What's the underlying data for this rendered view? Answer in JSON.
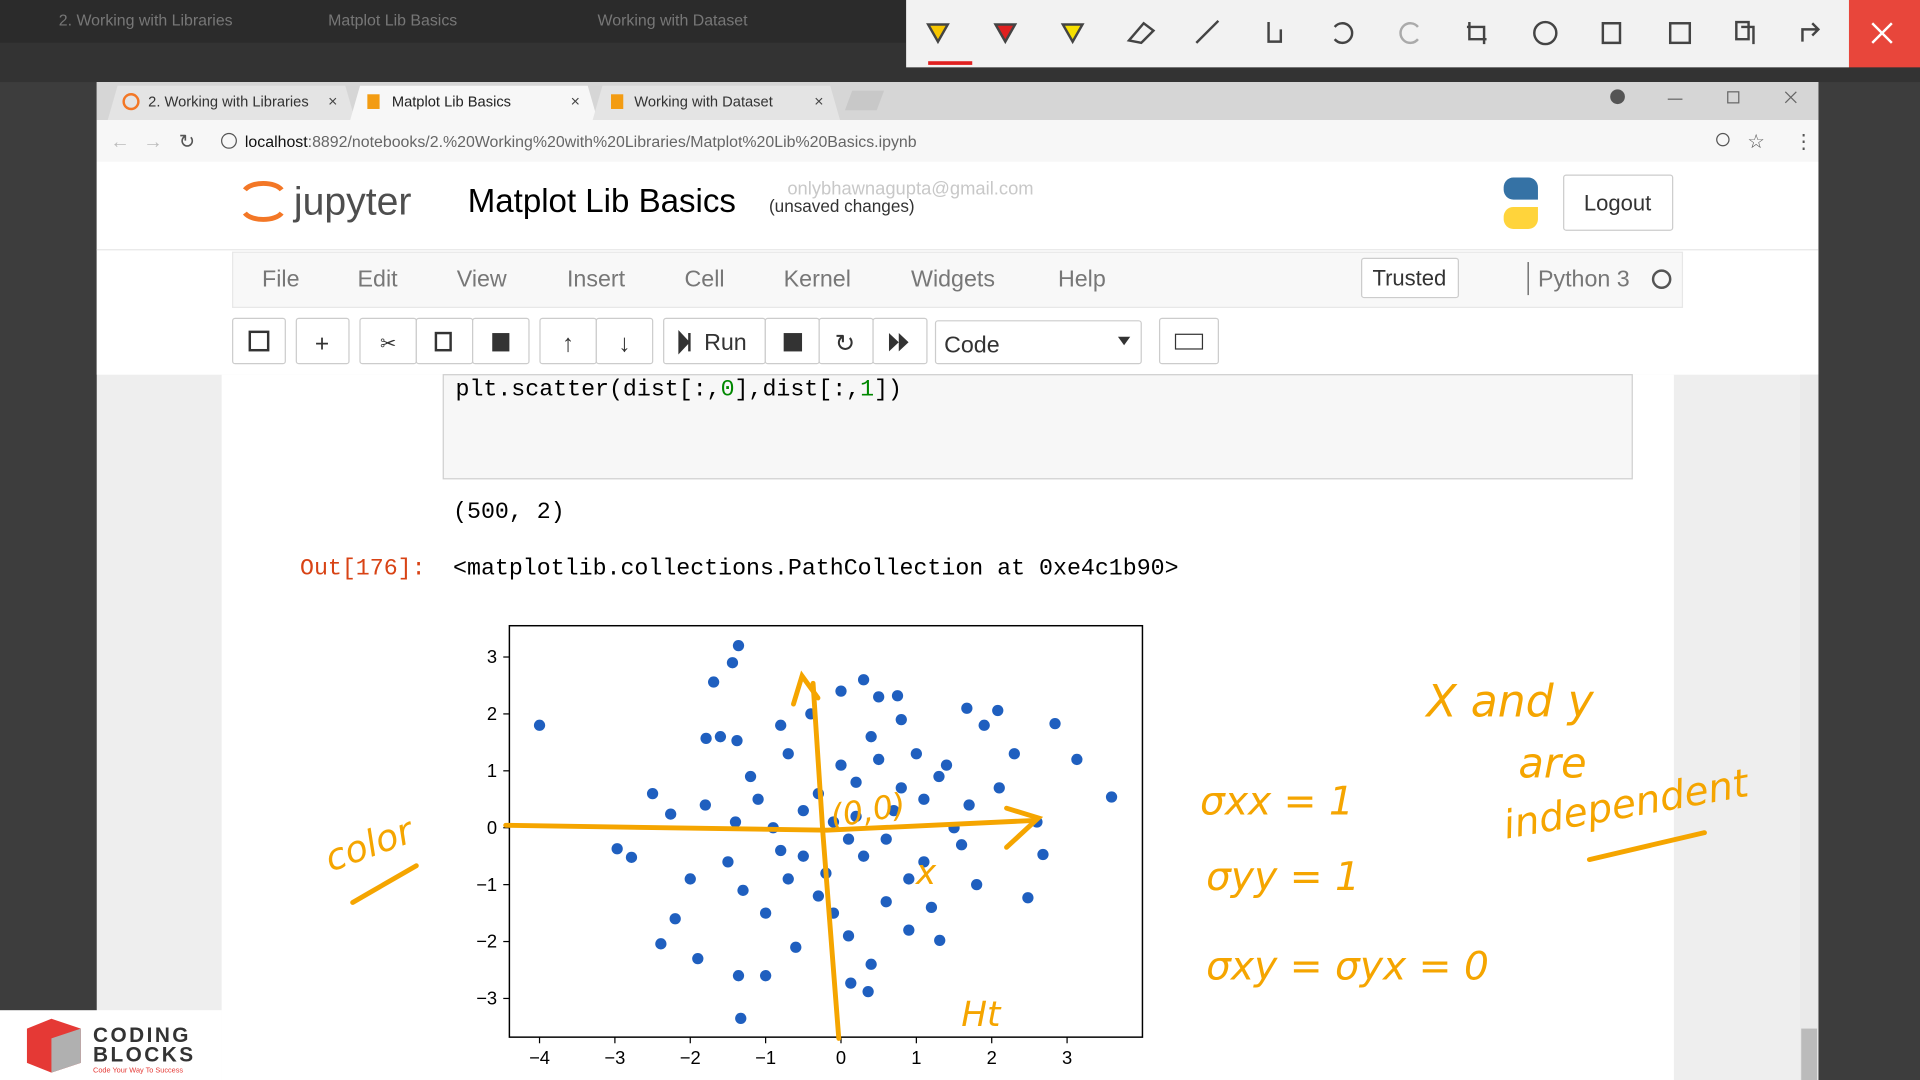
{
  "outer_tabs": [
    "2. Working with Libraries",
    "Matplot Lib Basics",
    "Working with Dataset"
  ],
  "browser": {
    "tabs": [
      "2. Working with Libraries",
      "Matplot Lib Basics",
      "Working with Dataset"
    ],
    "url_host": "localhost",
    "url_path": ":8892/notebooks/2.%20Working%20with%20Libraries/Matplot%20Lib%20Basics.ipynb"
  },
  "header": {
    "logo": "jupyter",
    "title": "Matplot Lib Basics",
    "status": "(unsaved changes)",
    "email": "onlybhawnagupta@gmail.com",
    "logout": "Logout"
  },
  "menu": [
    "File",
    "Edit",
    "View",
    "Insert",
    "Cell",
    "Kernel",
    "Widgets",
    "Help"
  ],
  "trusted": "Trusted",
  "kernel": "Python 3",
  "toolbar": {
    "run": "Run",
    "cell_type": "Code"
  },
  "cell": {
    "code": [
      "plt.scatter(dist[:,",
      "0",
      "],dist[:,",
      "1",
      "])"
    ],
    "stdout": "(500, 2)",
    "prompt": "Out[176]:",
    "result": "<matplotlib.collections.PathCollection at 0xe4c1b90>"
  },
  "chart_data": {
    "type": "scatter",
    "xlim": [
      -4.4,
      4.0
    ],
    "ylim": [
      -3.68,
      3.55
    ],
    "xticks": [
      {
        "value": -4,
        "label": "−4"
      },
      {
        "value": -3,
        "label": "−3"
      },
      {
        "value": -2,
        "label": "−2"
      },
      {
        "value": -1,
        "label": "−1"
      },
      0,
      1,
      2,
      3
    ],
    "yticks": [
      {
        "value": -3,
        "label": "−3"
      },
      {
        "value": -2,
        "label": "−2"
      },
      {
        "value": -1,
        "label": "−1"
      },
      0,
      1,
      2,
      3
    ],
    "series": [
      {
        "color": "#1f5fbf",
        "x": [
          -4.0,
          -1.36,
          -1.44,
          -1.69,
          3.59,
          3.13,
          2.84,
          -1.33,
          -1.36,
          -2.39,
          -2.97,
          -2.78,
          0.13,
          0.36,
          1.67,
          2.08,
          0.75,
          -2.26,
          2.68,
          2.48,
          1.31,
          -1.79,
          -1.38,
          -0.5,
          0.2,
          -0.8,
          0.6,
          1.1,
          -1.2,
          0.4,
          -0.3,
          0.9,
          -1.5,
          1.4,
          -0.1,
          0.3,
          -0.7,
          0.8,
          -1.0,
          1.6,
          -1.8,
          0.1,
          0.5,
          -0.4,
          1.2,
          -2.0,
          2.1,
          -0.9,
          0.7,
          -0.2,
          1.0,
          -1.3,
          0.0,
          1.8,
          -1.6,
          0.3,
          -0.6,
          0.9,
          2.3,
          -2.2,
          1.5,
          -0.3,
          0.6,
          -1.1,
          0.2,
          -0.5,
          1.3,
          -0.8,
          0.4,
          2.6,
          -2.5,
          1.9,
          -1.9,
          0.1,
          0.8,
          -0.7,
          1.1,
          -1.4,
          0.5,
          -0.1,
          1.7,
          -1.0,
          0.0
        ],
        "values": [
          1.8,
          3.2,
          2.9,
          2.56,
          0.54,
          1.2,
          1.83,
          -3.35,
          -2.6,
          -2.04,
          -0.37,
          -0.52,
          -2.73,
          -2.88,
          2.1,
          2.06,
          2.32,
          0.24,
          -0.47,
          -1.23,
          -1.98,
          1.57,
          1.53,
          0.3,
          0.8,
          -0.4,
          -0.2,
          0.5,
          0.9,
          1.6,
          -1.2,
          -0.9,
          -0.6,
          1.1,
          0.1,
          -0.5,
          1.3,
          1.9,
          -1.5,
          -0.3,
          0.4,
          -1.9,
          2.3,
          2.0,
          -1.4,
          -0.9,
          0.7,
          0.0,
          0.3,
          -0.8,
          1.3,
          -1.1,
          1.1,
          -1.0,
          1.6,
          2.6,
          -2.1,
          -1.8,
          1.3,
          -1.6,
          0.0,
          0.6,
          -1.3,
          0.5,
          0.2,
          -0.5,
          0.9,
          1.8,
          -2.4,
          0.1,
          0.6,
          1.8,
          -2.3,
          -0.2,
          0.7,
          -0.9,
          -0.6,
          0.1,
          1.2,
          -1.5,
          0.4,
          -2.6,
          2.4
        ]
      }
    ],
    "annotations": [
      "color",
      "(0,0)",
      "x",
      "Ht"
    ]
  },
  "notes": [
    "X and y",
    "are",
    "independent",
    "σxx = 1",
    "σyy = 1",
    "σxy = σyx = 0"
  ],
  "logo": {
    "line1": "CODING",
    "line2": "BLOCKS",
    "tagline": "Code Your Way To Success"
  }
}
